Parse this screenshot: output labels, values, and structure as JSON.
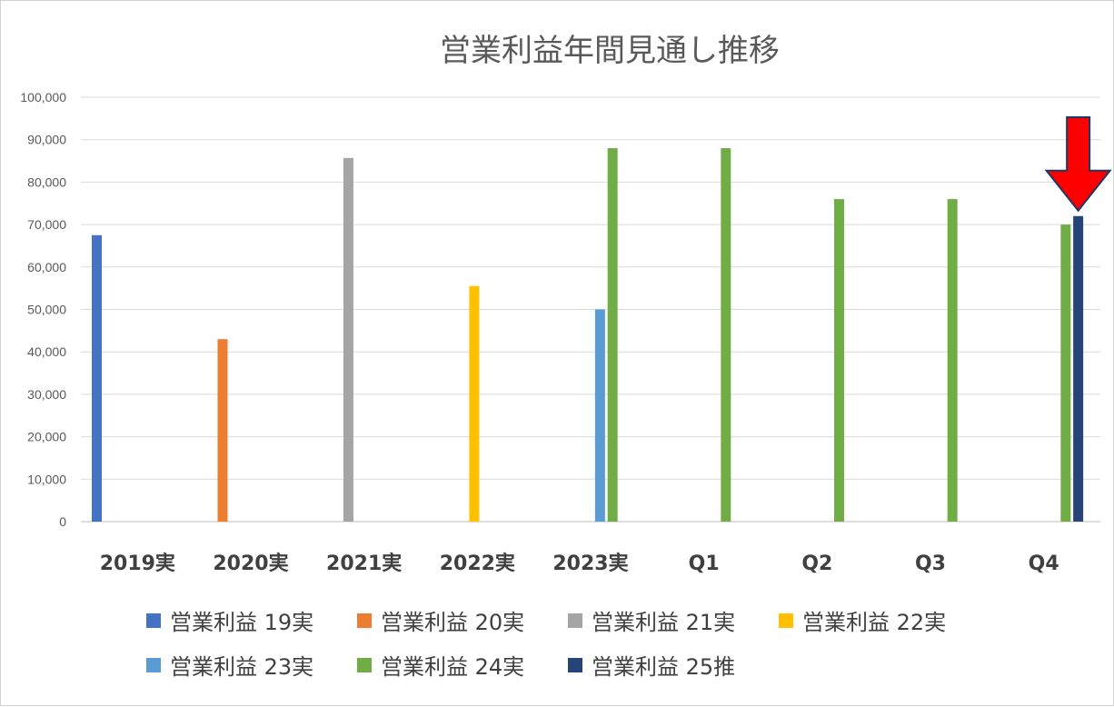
{
  "chart_data": {
    "type": "bar",
    "title": "営業利益年間見通し推移",
    "categories": [
      "2019実",
      "2020実",
      "2021実",
      "2022実",
      "2023実",
      "Q1",
      "Q2",
      "Q3",
      "Q4"
    ],
    "ylim": [
      0,
      100000
    ],
    "yticks": [
      "0",
      "10,000",
      "20,000",
      "30,000",
      "40,000",
      "50,000",
      "60,000",
      "70,000",
      "80,000",
      "90,000",
      "100,000"
    ],
    "grid": true,
    "legend_position": "bottom",
    "series": [
      {
        "name": "営業利益 19実",
        "color": "#4472C4",
        "values": [
          67500,
          null,
          null,
          null,
          null,
          null,
          null,
          null,
          null
        ]
      },
      {
        "name": "営業利益 20実",
        "color": "#ED7D31",
        "values": [
          null,
          43000,
          null,
          null,
          null,
          null,
          null,
          null,
          null
        ]
      },
      {
        "name": "営業利益 21実",
        "color": "#A5A5A5",
        "values": [
          null,
          null,
          85700,
          null,
          null,
          null,
          null,
          null,
          null
        ]
      },
      {
        "name": "営業利益 22実",
        "color": "#FFC000",
        "values": [
          null,
          null,
          null,
          55500,
          null,
          null,
          null,
          null,
          null
        ]
      },
      {
        "name": "営業利益 23実",
        "color": "#5B9BD5",
        "values": [
          null,
          null,
          null,
          null,
          50000,
          null,
          null,
          null,
          null
        ]
      },
      {
        "name": "営業利益 24実",
        "color": "#70AD47",
        "values": [
          null,
          null,
          null,
          null,
          88000,
          88000,
          76000,
          76000,
          70000
        ]
      },
      {
        "name": "営業利益 25推",
        "color": "#264478",
        "values": [
          null,
          null,
          null,
          null,
          null,
          null,
          null,
          null,
          72000
        ]
      }
    ],
    "annotation": {
      "type": "arrow",
      "color": "#FF0000",
      "target_category": "Q4",
      "target_series": "営業利益 25推"
    }
  }
}
